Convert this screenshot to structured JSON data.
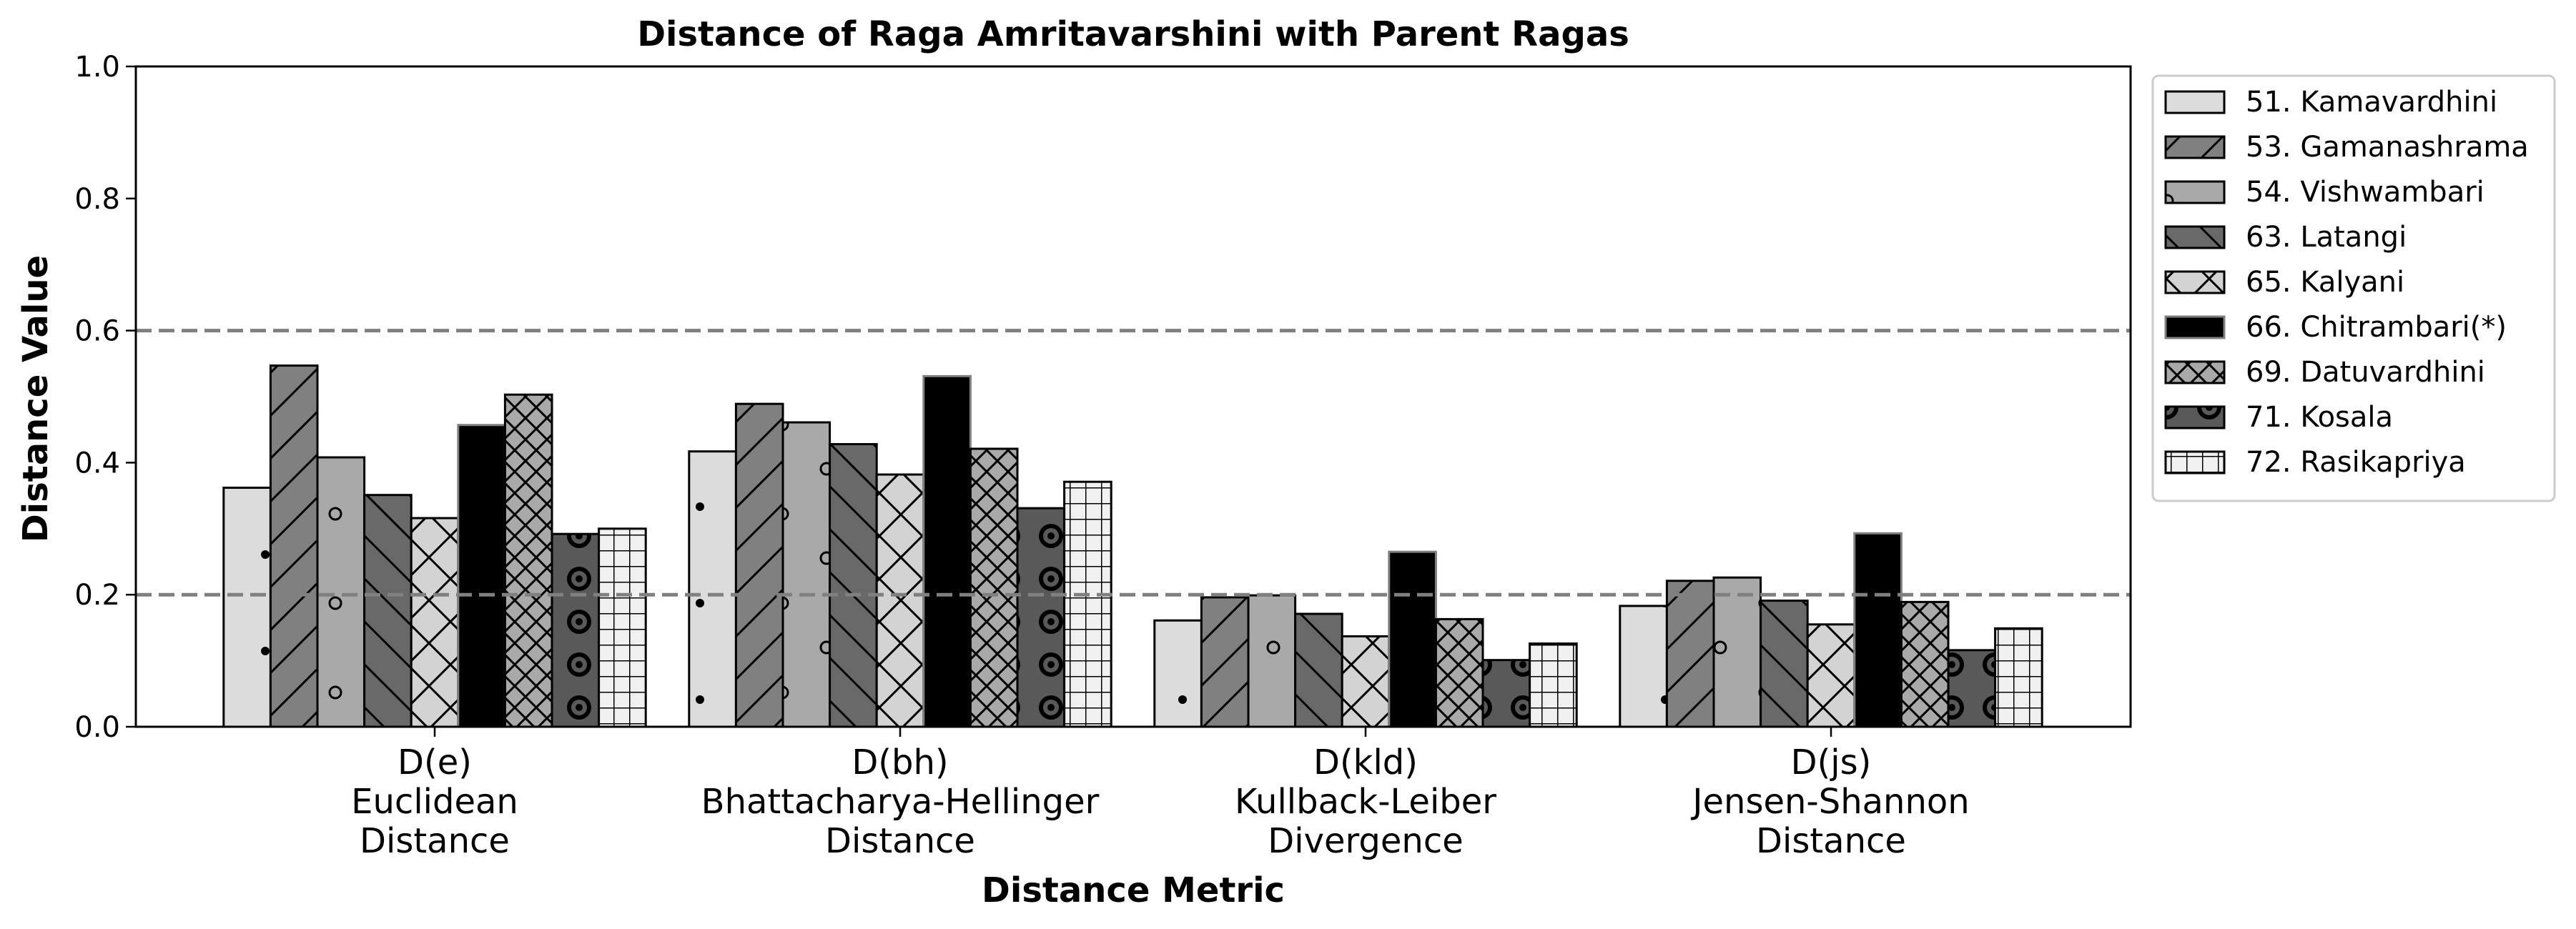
{
  "chart_data": {
    "type": "bar",
    "title": "Distance of Raga Amritavarshini with Parent Ragas",
    "xlabel": "Distance Metric",
    "ylabel": "Distance Value",
    "ylim": [
      0,
      1.0
    ],
    "yticks": [
      "0.0",
      "0.2",
      "0.4",
      "0.6",
      "0.8",
      "1.0"
    ],
    "reference_lines": [
      0.2,
      0.6
    ],
    "grid": false,
    "legend_position": "outside right, top",
    "categories": [
      [
        "D(e)",
        "Euclidean",
        "Distance"
      ],
      [
        "D(bh)",
        "Bhattacharya-Hellinger",
        "Distance"
      ],
      [
        "D(kld)",
        "Kullback-Leiber",
        "Divergence"
      ],
      [
        "D(js)",
        "Jensen-Shannon",
        "Distance"
      ]
    ],
    "series": [
      {
        "name": "51. Kamavardhini",
        "values": [
          0.362,
          0.417,
          0.161,
          0.183
        ],
        "color": "#dcdcdc",
        "hatch": "dots"
      },
      {
        "name": "53. Gamanashrama",
        "values": [
          0.547,
          0.489,
          0.196,
          0.221
        ],
        "color": "#808080",
        "hatch": "slash"
      },
      {
        "name": "54. Vishwambari",
        "values": [
          0.408,
          0.461,
          0.199,
          0.226
        ],
        "color": "#a9a9a9",
        "hatch": "circles"
      },
      {
        "name": "63. Latangi",
        "values": [
          0.351,
          0.428,
          0.171,
          0.191
        ],
        "color": "#696969",
        "hatch": "backslash"
      },
      {
        "name": "65. Kalyani",
        "values": [
          0.316,
          0.382,
          0.137,
          0.155
        ],
        "color": "#d3d3d3",
        "hatch": "cross"
      },
      {
        "name": "66. Chitrambari(*)",
        "values": [
          0.457,
          0.531,
          0.265,
          0.293
        ],
        "color": "#000000",
        "hatch": "none"
      },
      {
        "name": "69. Datuvardhini",
        "values": [
          0.503,
          0.421,
          0.163,
          0.189
        ],
        "color": "#a9a9a9",
        "hatch": "xcross"
      },
      {
        "name": "71. Kosala",
        "values": [
          0.292,
          0.331,
          0.101,
          0.116
        ],
        "color": "#595959",
        "hatch": "rings"
      },
      {
        "name": "72. Rasikapriya",
        "values": [
          0.3,
          0.371,
          0.126,
          0.149
        ],
        "color": "#f0f0f0",
        "hatch": "grid"
      }
    ]
  }
}
